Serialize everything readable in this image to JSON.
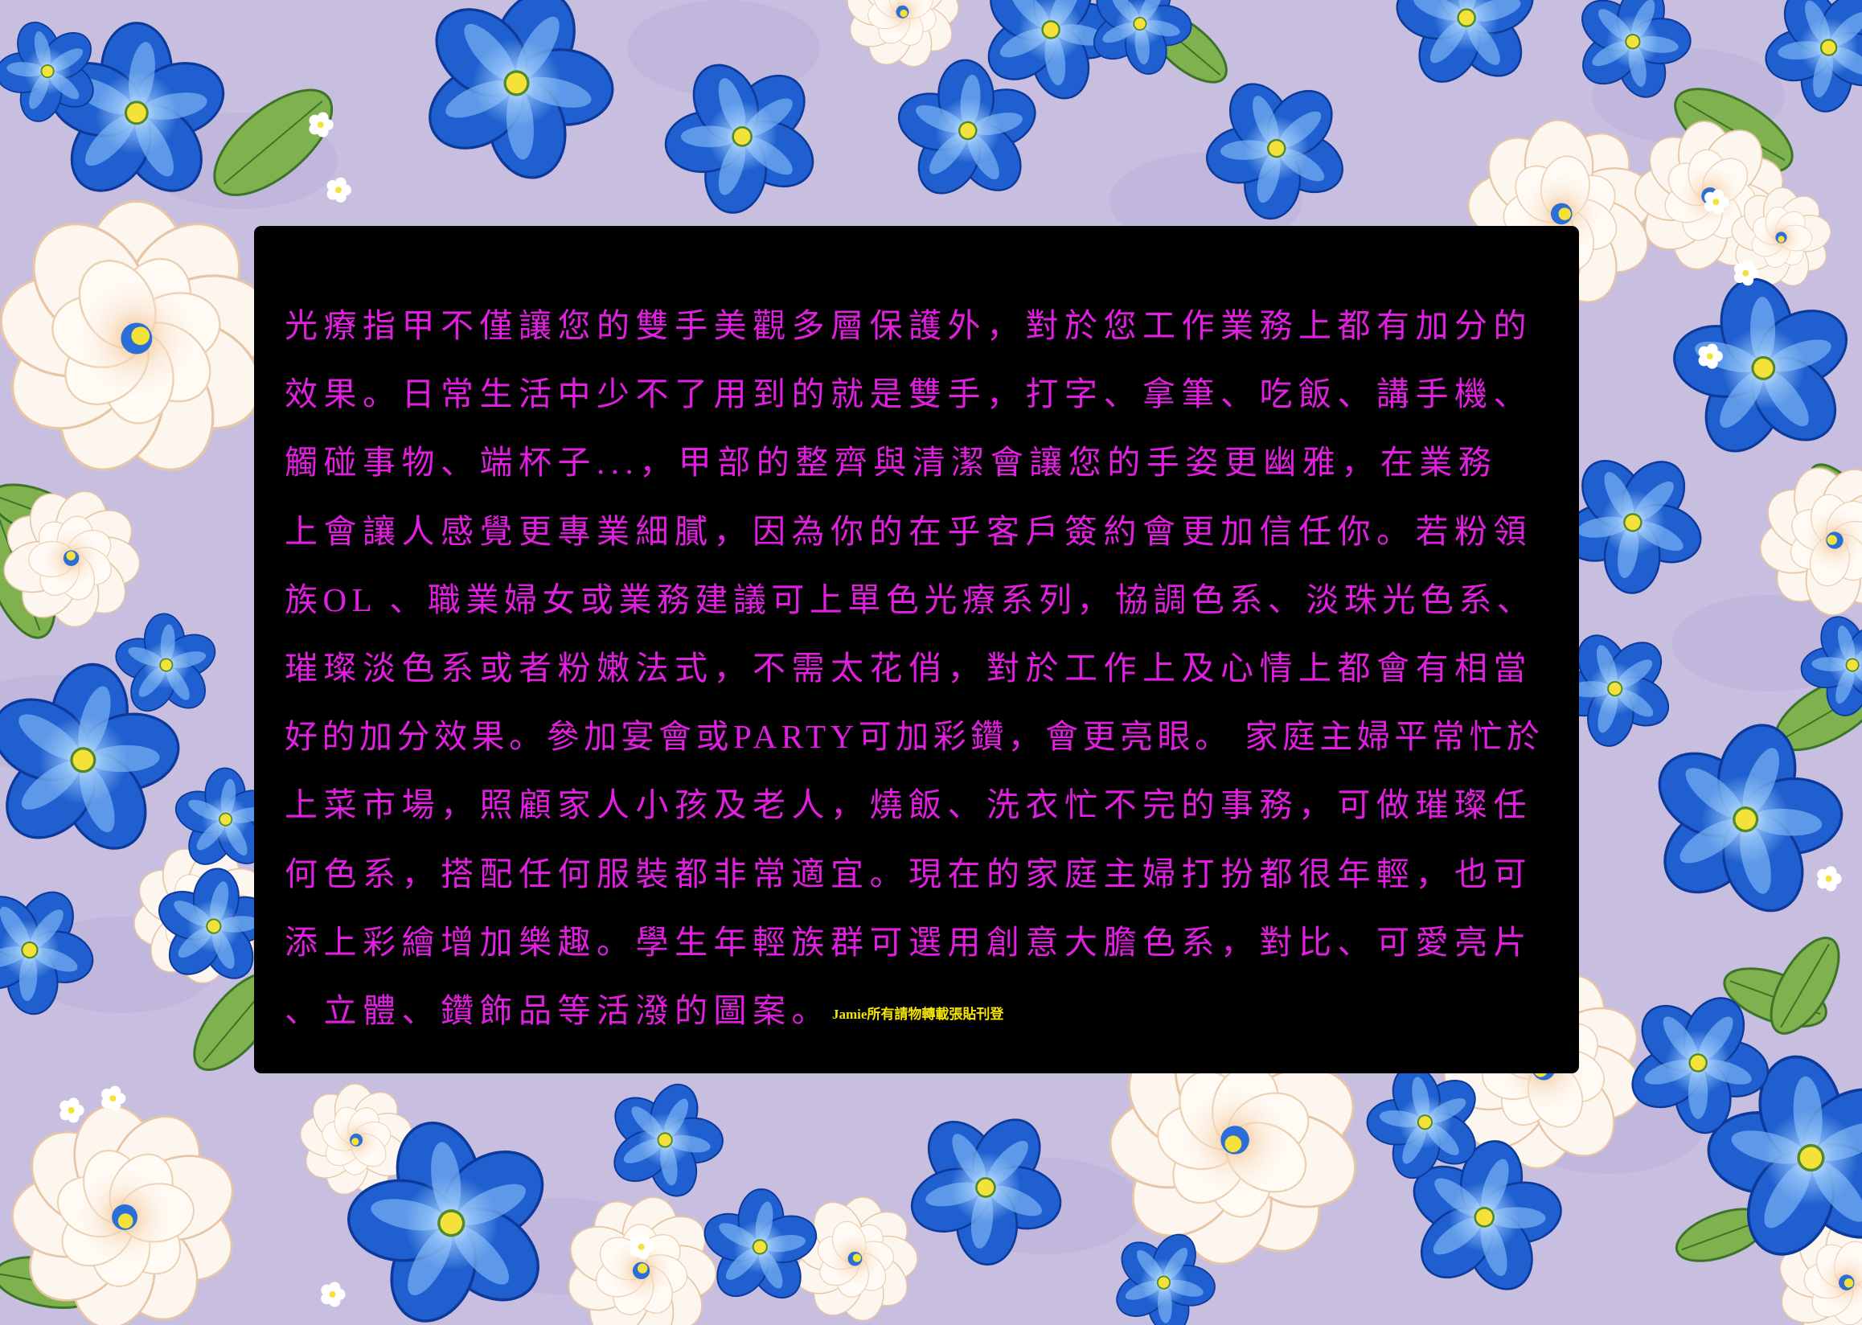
{
  "panel": {
    "lines": [
      "光療指甲不僅讓您的雙手美觀多層保護外，對於您工作業務上都有加分的",
      "效果。日常生活中少不了用到的就是雙手，打字、拿筆、吃飯、講手機、",
      "觸碰事物、端杯子...，甲部的整齊與清潔會讓您的手姿更幽雅，在業務",
      "上會讓人感覺更專業細膩，因為你的在乎客戶簽約會更加信任你。若粉領",
      "族OL 、職業婦女或業務建議可上單色光療系列，協調色系、淡珠光色系、",
      "璀璨淡色系或者粉嫩法式，不需太花俏，對於工作上及心情上都會有相當",
      "好的加分效果。參加宴會或PARTY可加彩鑽，會更亮眼。 家庭主婦平常忙於",
      "上菜市場，照顧家人小孩及老人，燒飯、洗衣忙不完的事務，可做璀璨任",
      "何色系，搭配任何服裝都非常適宜。現在的家庭主婦打扮都很年輕，也可",
      "添上彩繪增加樂趣。學生年輕族群可選用創意大膽色系，對比、可愛亮片",
      "、立體、鑽飾品等活潑的圖案。"
    ],
    "note": "Jamie所有請物轉載張貼刊登"
  },
  "colors": {
    "text": "#e21ee0",
    "note": "#f5e600",
    "panel": "#000000",
    "background": "#c8bee0",
    "flower_blue": "#1f5fcf",
    "flower_cream": "#fdf6ee",
    "leaf": "#7fb24f"
  }
}
